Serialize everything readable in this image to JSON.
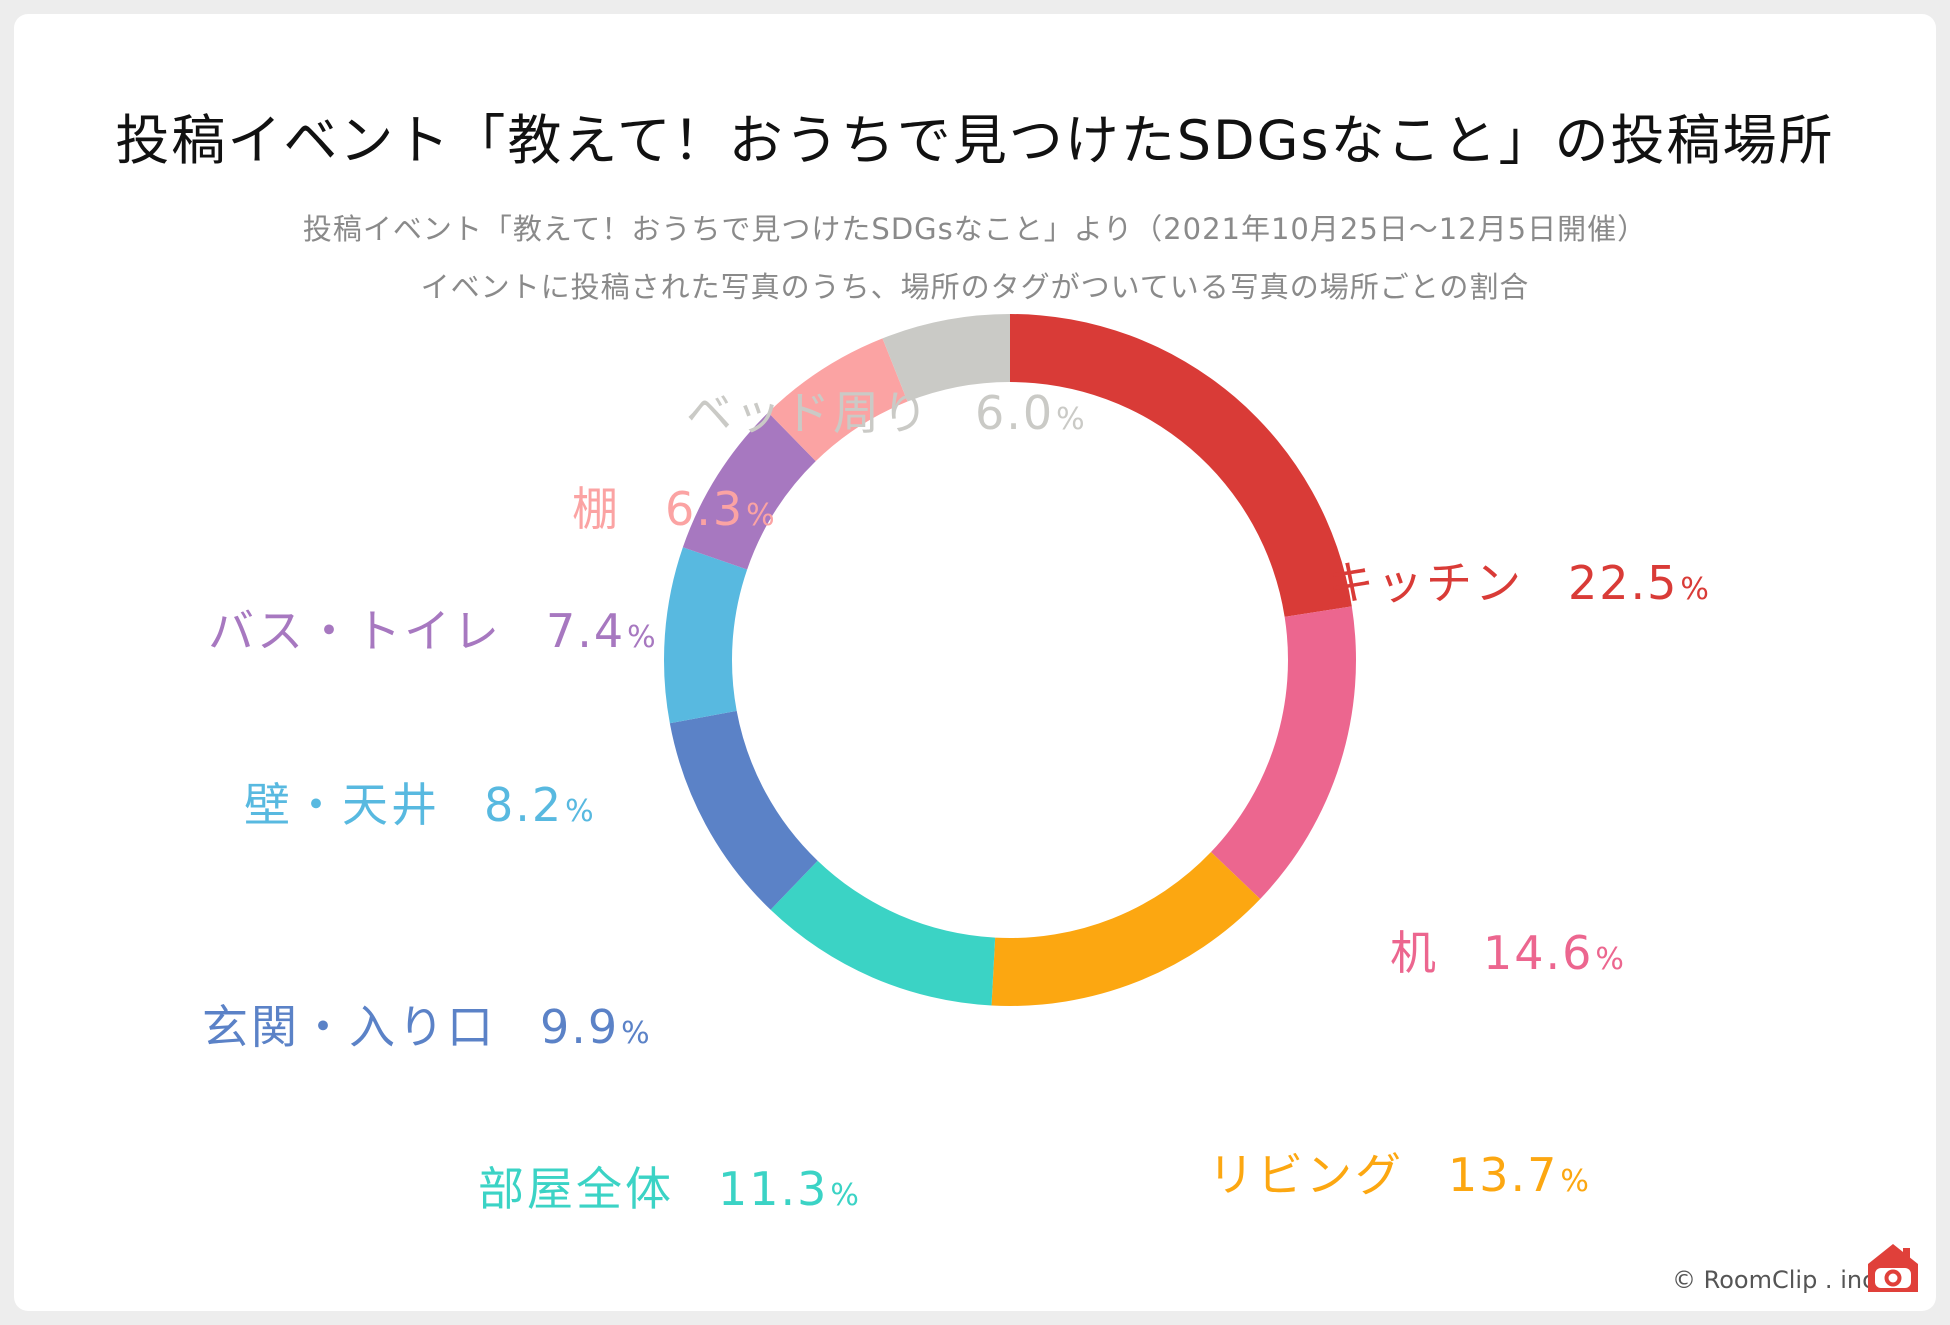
{
  "title": "投稿イベント「教えて！おうちで見つけたSDGsなこと」の投稿場所",
  "subtitle_line1": "投稿イベント「教えて！おうちで見つけたSDGsなこと」より（2021年10月25日〜12月5日開催）",
  "subtitle_line2": "イベントに投稿された写真のうち、場所のタグがついている写真の場所ごとの割合",
  "percent_sign": "%",
  "credit": "© RoomClip . inc",
  "logo_icon": "roomclip-house-camera-icon",
  "chart_data": {
    "type": "pie",
    "variant": "donut",
    "title": "投稿イベント「教えて！おうちで見つけたSDGsなこと」の投稿場所",
    "start": "12 o'clock",
    "direction": "clockwise",
    "slices": [
      {
        "label": "キッチン",
        "value": 22.5,
        "display": "22.5",
        "color": "#d93b37"
      },
      {
        "label": "机",
        "value": 14.6,
        "display": "14.6",
        "color": "#ec668f"
      },
      {
        "label": "リビング",
        "value": 13.7,
        "display": "13.7",
        "color": "#fca711"
      },
      {
        "label": "部屋全体",
        "value": 11.3,
        "display": "11.3",
        "color": "#3bd3c5"
      },
      {
        "label": "玄関・入り口",
        "value": 9.9,
        "display": "9.9",
        "color": "#5b82c7"
      },
      {
        "label": "壁・天井",
        "value": 8.2,
        "display": "8.2",
        "color": "#58b9e0"
      },
      {
        "label": "バス・トイレ",
        "value": 7.4,
        "display": "7.4",
        "color": "#a778c0"
      },
      {
        "label": "棚",
        "value": 6.3,
        "display": "6.3",
        "color": "#fba3a3"
      },
      {
        "label": "ベッド周り",
        "value": 6.0,
        "display": "6.0",
        "color": "#cacac6"
      }
    ]
  }
}
